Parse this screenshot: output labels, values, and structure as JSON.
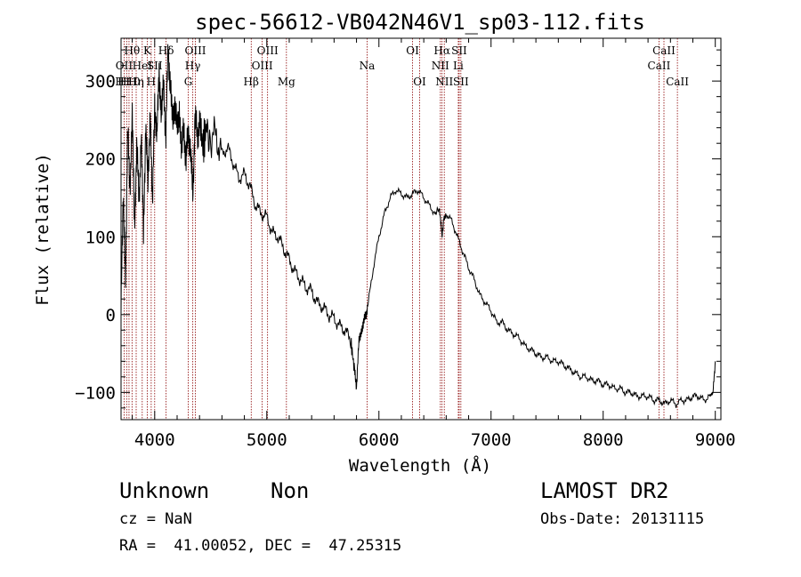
{
  "chart_data": {
    "type": "line",
    "title": "spec-56612-VB042N46V1_sp03-112.fits",
    "xlabel": "Wavelength (Å)",
    "ylabel": "Flux (relative)",
    "xlim": [
      3700,
      9050
    ],
    "ylim": [
      -135,
      355
    ],
    "x_ticks": [
      4000,
      5000,
      6000,
      7000,
      8000,
      9000
    ],
    "x_tick_labels": [
      "4000",
      "5000",
      "6000",
      "7000",
      "8000",
      "9000"
    ],
    "y_ticks": [
      -100,
      0,
      100,
      200,
      300
    ],
    "y_tick_labels": [
      "−100",
      "0",
      "100",
      "200",
      "300"
    ],
    "grid": false,
    "series": [
      {
        "color": "#000000",
        "x": [
          3700,
          3720,
          3740,
          3760,
          3780,
          3800,
          3820,
          3840,
          3860,
          3880,
          3900,
          3920,
          3940,
          3960,
          3980,
          4000,
          4020,
          4040,
          4060,
          4080,
          4100,
          4120,
          4140,
          4160,
          4180,
          4200,
          4220,
          4240,
          4260,
          4280,
          4300,
          4320,
          4340,
          4360,
          4380,
          4400,
          4430,
          4460,
          4500,
          4550,
          4600,
          4650,
          4700,
          4750,
          4800,
          4850,
          4900,
          4950,
          5000,
          5050,
          5100,
          5150,
          5200,
          5250,
          5300,
          5350,
          5400,
          5450,
          5500,
          5550,
          5600,
          5650,
          5700,
          5750,
          5780,
          5800,
          5820,
          5840,
          5860,
          5880,
          5900,
          5950,
          6000,
          6050,
          6100,
          6150,
          6200,
          6250,
          6300,
          6350,
          6400,
          6450,
          6500,
          6540,
          6563,
          6580,
          6600,
          6650,
          6700,
          6750,
          6800,
          6850,
          6900,
          6950,
          7000,
          7050,
          7100,
          7150,
          7200,
          7250,
          7300,
          7350,
          7400,
          7450,
          7500,
          7550,
          7600,
          7650,
          7700,
          7750,
          7800,
          7850,
          7900,
          7950,
          8000,
          8050,
          8100,
          8150,
          8200,
          8250,
          8300,
          8350,
          8400,
          8450,
          8500,
          8550,
          8600,
          8650,
          8700,
          8750,
          8800,
          8850,
          8900,
          8950,
          8980,
          9000
        ],
        "values": [
          20,
          140,
          60,
          230,
          170,
          250,
          120,
          210,
          150,
          230,
          100,
          250,
          160,
          270,
          130,
          280,
          220,
          320,
          250,
          300,
          230,
          340,
          300,
          240,
          280,
          230,
          270,
          200,
          250,
          190,
          240,
          210,
          150,
          260,
          220,
          255,
          215,
          240,
          225,
          230,
          205,
          215,
          195,
          175,
          180,
          165,
          140,
          130,
          125,
          105,
          100,
          85,
          70,
          55,
          45,
          35,
          30,
          15,
          10,
          0,
          -5,
          -15,
          -20,
          -35,
          -70,
          -90,
          -40,
          -20,
          -15,
          0,
          10,
          60,
          100,
          130,
          150,
          160,
          155,
          150,
          155,
          160,
          150,
          140,
          130,
          135,
          100,
          125,
          130,
          120,
          100,
          80,
          60,
          45,
          25,
          15,
          5,
          -10,
          -10,
          -20,
          -25,
          -30,
          -40,
          -45,
          -50,
          -55,
          -55,
          -60,
          -60,
          -65,
          -70,
          -75,
          -80,
          -80,
          -85,
          -85,
          -90,
          -90,
          -95,
          -95,
          -100,
          -100,
          -105,
          -105,
          -105,
          -110,
          -110,
          -115,
          -110,
          -115,
          -110,
          -110,
          -105,
          -105,
          -110,
          -105,
          -100,
          -60
        ]
      }
    ],
    "line_markers": [
      {
        "wavelength": 3727,
        "row1": "",
        "row2": "OII",
        "row3": ""
      },
      {
        "wavelength": 3750,
        "row1": "",
        "row2": "",
        "row3": "H11"
      },
      {
        "wavelength": 3771,
        "row1": "",
        "row2": "",
        "row3": "H10"
      },
      {
        "wavelength": 3798,
        "row1": "Hθ",
        "row2": "",
        "row3": ""
      },
      {
        "wavelength": 3835,
        "row1": "",
        "row2": "",
        "row3": "Hη"
      },
      {
        "wavelength": 3889,
        "row1": "",
        "row2": "HeI",
        "row3": ""
      },
      {
        "wavelength": 3934,
        "row1": "K",
        "row2": "",
        "row3": ""
      },
      {
        "wavelength": 3969,
        "row1": "",
        "row2": "",
        "row3": "H"
      },
      {
        "wavelength": 4000,
        "row1": "",
        "row2": "SII",
        "row3": ""
      },
      {
        "wavelength": 4102,
        "row1": "Hδ",
        "row2": "",
        "row3": ""
      },
      {
        "wavelength": 4300,
        "row1": "",
        "row2": "",
        "row3": "G"
      },
      {
        "wavelength": 4340,
        "row1": "",
        "row2": "Hγ",
        "row3": ""
      },
      {
        "wavelength": 4363,
        "row1": "OIII",
        "row2": "",
        "row3": ""
      },
      {
        "wavelength": 4861,
        "row1": "",
        "row2": "",
        "row3": "Hβ"
      },
      {
        "wavelength": 4959,
        "row1": "",
        "row2": "OIII",
        "row3": ""
      },
      {
        "wavelength": 5007,
        "row1": "OIII",
        "row2": "",
        "row3": ""
      },
      {
        "wavelength": 5175,
        "row1": "",
        "row2": "",
        "row3": "Mg"
      },
      {
        "wavelength": 5894,
        "row1": "",
        "row2": "Na",
        "row3": ""
      },
      {
        "wavelength": 6300,
        "row1": "OI",
        "row2": "",
        "row3": ""
      },
      {
        "wavelength": 6363,
        "row1": "",
        "row2": "",
        "row3": "OI"
      },
      {
        "wavelength": 6548,
        "row1": "",
        "row2": "NII",
        "row3": ""
      },
      {
        "wavelength": 6563,
        "row1": "Hα",
        "row2": "",
        "row3": ""
      },
      {
        "wavelength": 6583,
        "row1": "",
        "row2": "",
        "row3": "NII"
      },
      {
        "wavelength": 6708,
        "row1": "",
        "row2": "Li",
        "row3": ""
      },
      {
        "wavelength": 6716,
        "row1": "SII",
        "row2": "",
        "row3": ""
      },
      {
        "wavelength": 6731,
        "row1": "",
        "row2": "",
        "row3": "SII"
      },
      {
        "wavelength": 8498,
        "row1": "",
        "row2": "CaII",
        "row3": ""
      },
      {
        "wavelength": 8542,
        "row1": "CaII",
        "row2": "",
        "row3": ""
      },
      {
        "wavelength": 8662,
        "row1": "",
        "row2": "",
        "row3": "CaII"
      }
    ]
  },
  "footer": {
    "classification": "Unknown",
    "subclass": "Non",
    "survey": "LAMOST DR2",
    "redshift": "cz = NaN",
    "obs_date": "Obs-Date: 20131115",
    "coordinates": "RA =  41.00052, DEC =  47.25315"
  },
  "colors": {
    "spectrum": "#000000",
    "marker_line": "#8b0000"
  }
}
